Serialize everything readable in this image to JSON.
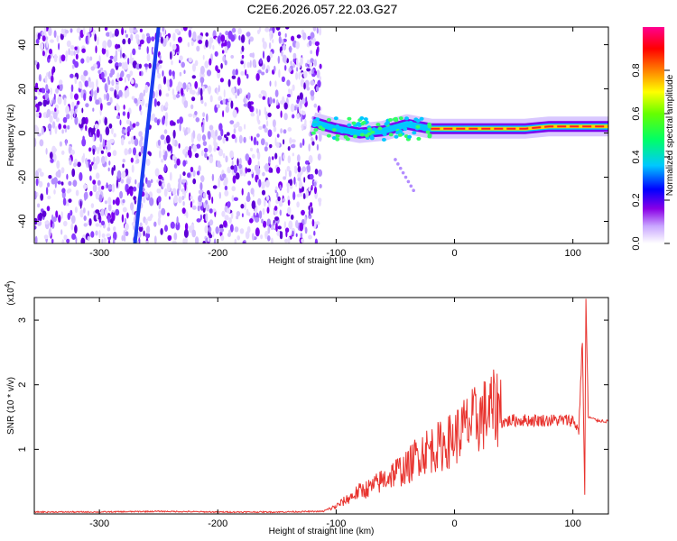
{
  "title": "C2E6.2026.057.22.03.G27",
  "chart_data": [
    {
      "type": "heatmap",
      "xlabel": "Height of straight line (km)",
      "ylabel": "Frequency (Hz)",
      "xlim": [
        -355,
        130
      ],
      "ylim": [
        -50,
        48
      ],
      "x_ticks": [
        -300,
        -200,
        -100,
        0,
        100
      ],
      "y_ticks": [
        -40,
        -20,
        0,
        20,
        40
      ],
      "colorbar": {
        "label": "Normalized spectral amplitude",
        "range": [
          0,
          1
        ],
        "ticks": [
          "0.0",
          "0.2",
          "0.4",
          "0.6",
          "0.8"
        ],
        "colors": [
          "#ffffff",
          "#8a00e6",
          "#0000ff",
          "#00c8ff",
          "#00ff00",
          "#ffff00",
          "#ff8000",
          "#ff0000",
          "#ff0090"
        ]
      },
      "noise_region_x": [
        -355,
        -113
      ],
      "diagonal_line": {
        "x_start": -270,
        "y_start": -50,
        "x_end": -250,
        "y_end": 48
      },
      "signal_ridge": [
        {
          "x": -120,
          "y": 5
        },
        {
          "x": -100,
          "y": 2
        },
        {
          "x": -80,
          "y": 0
        },
        {
          "x": -60,
          "y": 1
        },
        {
          "x": -40,
          "y": 4
        },
        {
          "x": -20,
          "y": 2
        },
        {
          "x": 0,
          "y": 2
        },
        {
          "x": 20,
          "y": 2
        },
        {
          "x": 40,
          "y": 2
        },
        {
          "x": 60,
          "y": 2
        },
        {
          "x": 80,
          "y": 3
        },
        {
          "x": 100,
          "y": 3
        },
        {
          "x": 130,
          "y": 3
        }
      ]
    },
    {
      "type": "line",
      "xlabel": "Height of straight line (km)",
      "ylabel": "SNR (10 * v/v)",
      "y_exponent_label": "(x10",
      "y_exponent": "4",
      "y_exponent_close": ")",
      "xlim": [
        -355,
        130
      ],
      "ylim": [
        0,
        3.35
      ],
      "x_ticks": [
        -300,
        -200,
        -100,
        0,
        100
      ],
      "y_ticks": [
        1,
        2,
        3
      ],
      "series": [
        {
          "color": "#e8332e",
          "points": [
            [
              -355,
              0.03
            ],
            [
              -300,
              0.03
            ],
            [
              -250,
              0.04
            ],
            [
              -200,
              0.03
            ],
            [
              -150,
              0.03
            ],
            [
              -110,
              0.04
            ],
            [
              -100,
              0.1
            ],
            [
              -90,
              0.2
            ],
            [
              -80,
              0.3
            ],
            [
              -70,
              0.35
            ],
            [
              -60,
              0.45
            ],
            [
              -50,
              0.55
            ],
            [
              -40,
              0.6
            ],
            [
              -30,
              0.8
            ],
            [
              -20,
              0.85
            ],
            [
              -10,
              0.9
            ],
            [
              0,
              1.0
            ],
            [
              10,
              1.15
            ],
            [
              20,
              1.25
            ],
            [
              30,
              1.35
            ],
            [
              40,
              1.42
            ],
            [
              50,
              1.45
            ],
            [
              60,
              1.45
            ],
            [
              70,
              1.45
            ],
            [
              80,
              1.45
            ],
            [
              90,
              1.45
            ],
            [
              100,
              1.45
            ],
            [
              105,
              1.3
            ],
            [
              108,
              2.7
            ],
            [
              110,
              0.3
            ],
            [
              111,
              3.35
            ],
            [
              113,
              1.5
            ],
            [
              120,
              1.45
            ],
            [
              130,
              1.43
            ]
          ]
        }
      ]
    }
  ]
}
